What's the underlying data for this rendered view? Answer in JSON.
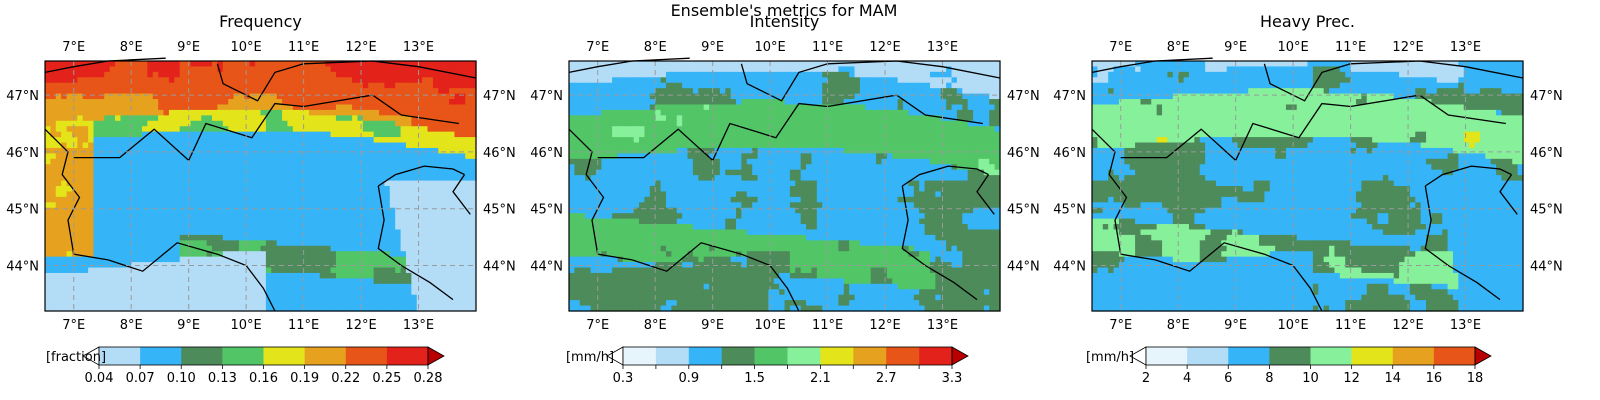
{
  "figure": {
    "suptitle": "Ensemble's metrics for MAM"
  },
  "lon_labels": [
    "7°E",
    "8°E",
    "9°E",
    "10°E",
    "11°E",
    "12°E",
    "13°E"
  ],
  "lat_labels": [
    "47°N",
    "46°N",
    "45°N",
    "44°N"
  ],
  "colors": {
    "frame": "#000000",
    "grid": "#9a9a9a",
    "border_line": "#000000"
  },
  "chart_data": [
    {
      "type": "heatmap",
      "title": "Frequency",
      "extent_lon": [
        6.5,
        14.0
      ],
      "extent_lat": [
        43.2,
        47.6
      ],
      "colorbar": {
        "label": "[fraction]",
        "boundaries": [
          0.04,
          0.07,
          0.1,
          0.13,
          0.16,
          0.19,
          0.22,
          0.25,
          0.28
        ],
        "tick_labels": [
          "0.04",
          "0.07",
          "0.10",
          "0.13",
          "0.16",
          "0.19",
          "0.22",
          "0.25",
          "0.28"
        ],
        "colors": [
          "#b3dcf7",
          "#36b4f8",
          "#4d8b5a",
          "#52c667",
          "#e4e41a",
          "#e6a21e",
          "#e85518",
          "#e3231b"
        ],
        "under_color": "#ffffff",
        "over_color": "#b90000"
      }
    },
    {
      "type": "heatmap",
      "title": "Intensity",
      "extent_lon": [
        6.5,
        14.0
      ],
      "extent_lat": [
        43.2,
        47.6
      ],
      "colorbar": {
        "label": "[mm/h]",
        "boundaries": [
          0.3,
          0.6,
          0.9,
          1.2,
          1.5,
          1.8,
          2.1,
          2.4,
          2.7,
          3.0,
          3.3
        ],
        "tick_labels": [
          "0.3",
          "",
          "0.9",
          "",
          "1.5",
          "",
          "2.1",
          "",
          "2.7",
          "",
          "3.3"
        ],
        "colors": [
          "#e6f4fc",
          "#b3dcf7",
          "#36b4f8",
          "#4d8b5a",
          "#52c667",
          "#87f09a",
          "#e4e41a",
          "#e6a21e",
          "#e85518",
          "#e3231b"
        ],
        "under_color": "#ffffff",
        "over_color": "#b90000"
      }
    },
    {
      "type": "heatmap",
      "title": "Heavy Prec.",
      "extent_lon": [
        6.5,
        14.0
      ],
      "extent_lat": [
        43.2,
        47.6
      ],
      "colorbar": {
        "label": "[mm/h]",
        "boundaries": [
          2,
          4,
          6,
          8,
          10,
          12,
          14,
          16,
          18
        ],
        "tick_labels": [
          "2",
          "4",
          "6",
          "8",
          "10",
          "12",
          "14",
          "16",
          "18"
        ],
        "colors": [
          "#e6f4fc",
          "#b3dcf7",
          "#36b4f8",
          "#4d8b5a",
          "#87f09a",
          "#e4e41a",
          "#e6a21e",
          "#e85518"
        ],
        "under_color": "#ffffff",
        "over_color": "#b90000"
      }
    }
  ]
}
